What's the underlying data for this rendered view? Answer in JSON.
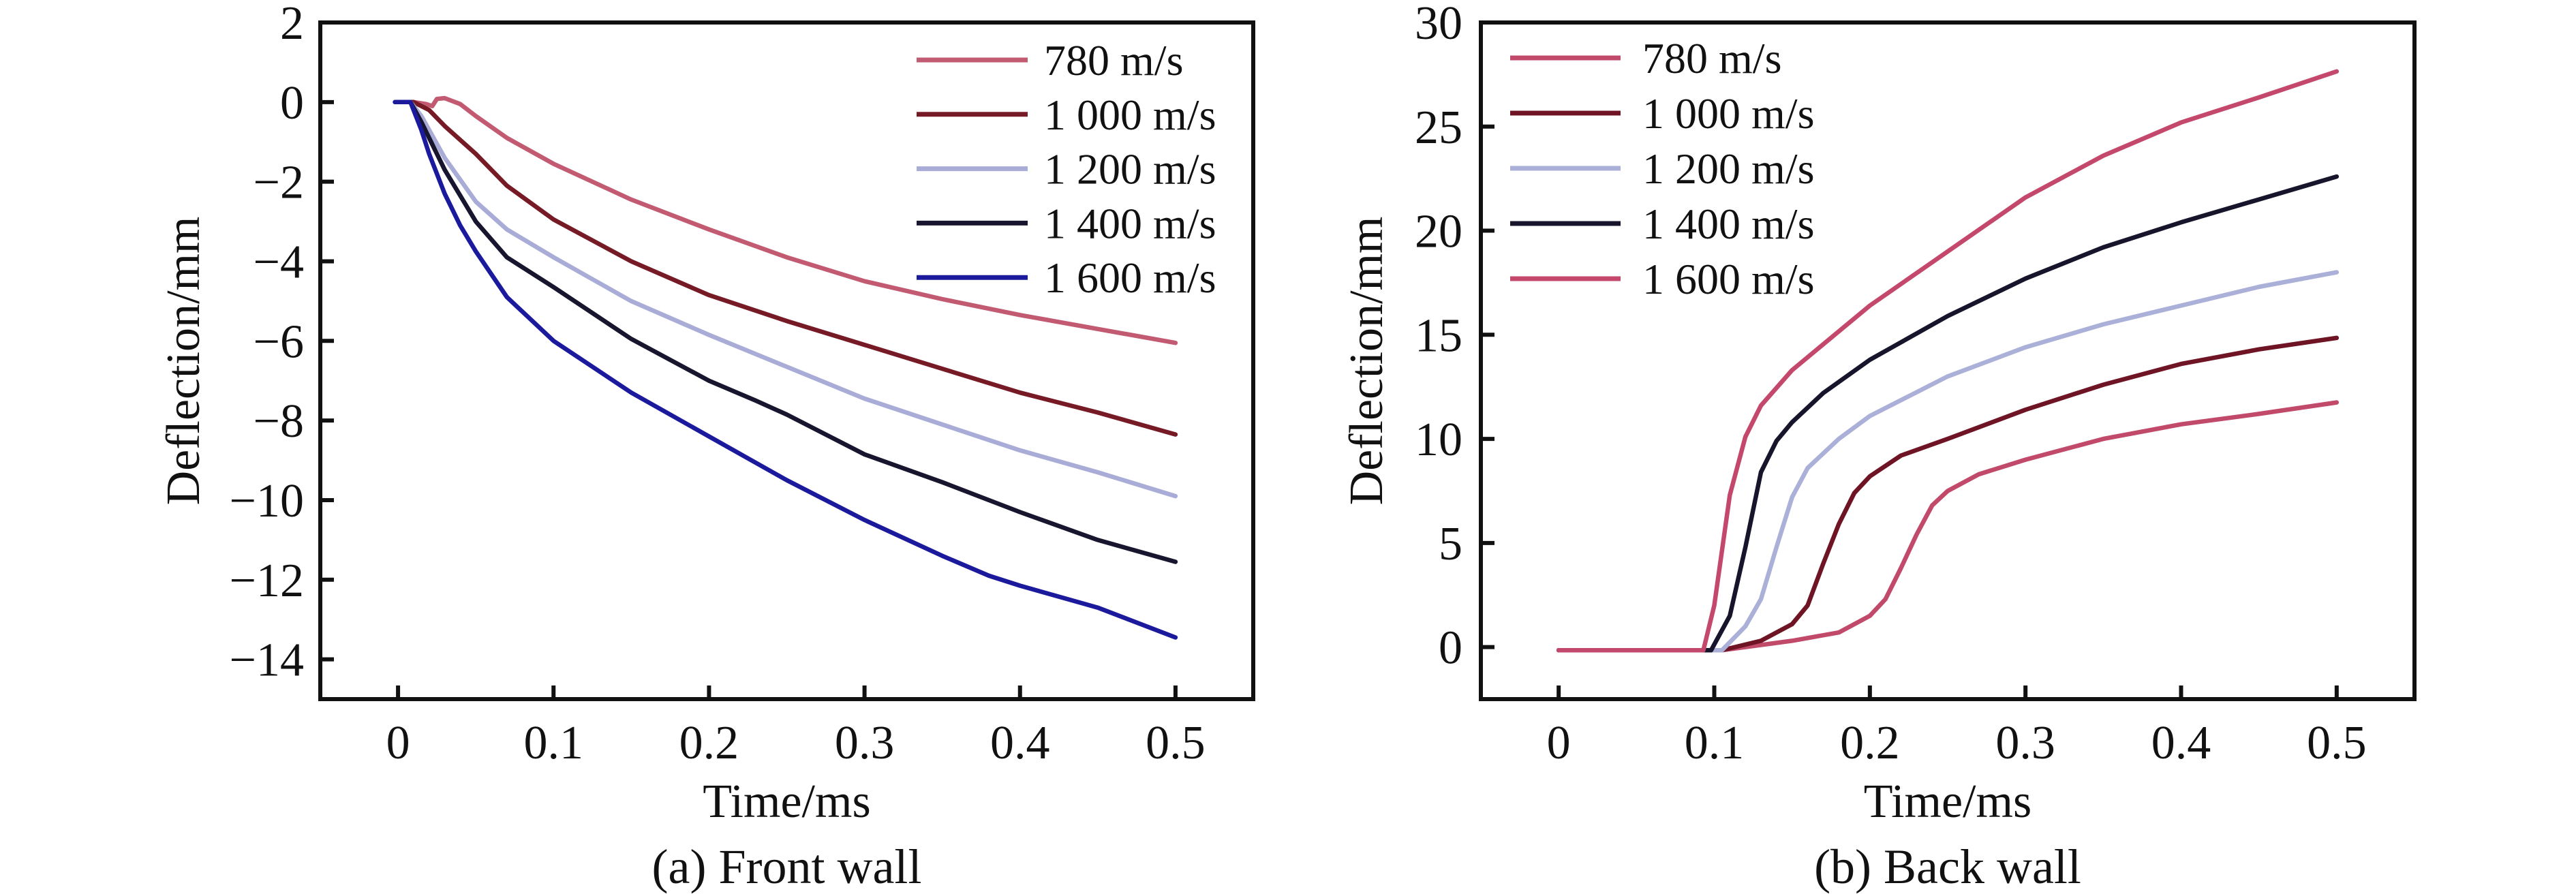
{
  "chart_data": [
    {
      "id": "front",
      "type": "line",
      "title": "",
      "caption": "(a) Front wall",
      "xlabel": "Time/ms",
      "ylabel": "Deflection/mm",
      "xlim": [
        -0.05,
        0.55
      ],
      "ylim": [
        -15,
        2
      ],
      "xticks": [
        0,
        0.1,
        0.2,
        0.3,
        0.4,
        0.5
      ],
      "xtick_labels": [
        "0",
        "0.1",
        "0.2",
        "0.3",
        "0.4",
        "0.5"
      ],
      "yticks": [
        2,
        0,
        -2,
        -4,
        -6,
        -8,
        -10,
        -12,
        -14
      ],
      "ytick_labels": [
        "2",
        "0",
        "−2",
        "−4",
        "−6",
        "−8",
        "−10",
        "−12",
        "−14"
      ],
      "grid": false,
      "legend_position": "top-right",
      "series": [
        {
          "name": "780 m/s",
          "color": "#c25a72",
          "x": [
            0.0,
            0.01,
            0.018,
            0.022,
            0.025,
            0.03,
            0.04,
            0.05,
            0.07,
            0.1,
            0.15,
            0.2,
            0.25,
            0.3,
            0.35,
            0.4,
            0.45,
            0.5
          ],
          "y": [
            0.0,
            0.0,
            -0.05,
            -0.1,
            0.08,
            0.1,
            -0.05,
            -0.35,
            -0.9,
            -1.55,
            -2.45,
            -3.2,
            -3.9,
            -4.5,
            -4.95,
            -5.35,
            -5.7,
            -6.05
          ]
        },
        {
          "name": "1 000 m/s",
          "color": "#761a26",
          "x": [
            0.0,
            0.01,
            0.02,
            0.03,
            0.05,
            0.07,
            0.1,
            0.15,
            0.2,
            0.25,
            0.3,
            0.35,
            0.4,
            0.45,
            0.5
          ],
          "y": [
            0.0,
            0.0,
            -0.2,
            -0.6,
            -1.3,
            -2.1,
            -2.95,
            -4.0,
            -4.85,
            -5.5,
            -6.1,
            -6.7,
            -7.3,
            -7.8,
            -8.35
          ]
        },
        {
          "name": "1 200 m/s",
          "color": "#a9acd6",
          "x": [
            0.0,
            0.008,
            0.015,
            0.02,
            0.03,
            0.05,
            0.07,
            0.1,
            0.15,
            0.2,
            0.25,
            0.3,
            0.35,
            0.4,
            0.45,
            0.5
          ],
          "y": [
            0.0,
            0.0,
            -0.35,
            -0.7,
            -1.4,
            -2.5,
            -3.2,
            -3.9,
            -5.0,
            -5.85,
            -6.65,
            -7.45,
            -8.1,
            -8.75,
            -9.3,
            -9.9
          ]
        },
        {
          "name": "1 400 m/s",
          "color": "#17162e",
          "x": [
            0.0,
            0.008,
            0.015,
            0.02,
            0.03,
            0.05,
            0.07,
            0.1,
            0.15,
            0.2,
            0.23,
            0.25,
            0.3,
            0.35,
            0.4,
            0.45,
            0.5
          ],
          "y": [
            0.0,
            0.0,
            -0.5,
            -0.9,
            -1.7,
            -3.0,
            -3.9,
            -4.65,
            -5.95,
            -7.0,
            -7.5,
            -7.85,
            -8.85,
            -9.55,
            -10.3,
            -11.0,
            -11.55
          ]
        },
        {
          "name": "1 600 m/s",
          "color": "#1c1a9c",
          "x": [
            -0.002,
            0.008,
            0.015,
            0.02,
            0.03,
            0.04,
            0.05,
            0.07,
            0.1,
            0.15,
            0.2,
            0.25,
            0.3,
            0.35,
            0.38,
            0.4,
            0.45,
            0.5
          ],
          "y": [
            0.0,
            0.0,
            -0.7,
            -1.3,
            -2.3,
            -3.1,
            -3.75,
            -4.9,
            -6.0,
            -7.3,
            -8.4,
            -9.5,
            -10.5,
            -11.4,
            -11.9,
            -12.15,
            -12.7,
            -13.45
          ]
        }
      ]
    },
    {
      "id": "back",
      "type": "line",
      "title": "",
      "caption": "(b) Back wall",
      "xlabel": "Time/ms",
      "ylabel": "Deflection/mm",
      "xlim": [
        -0.05,
        0.55
      ],
      "ylim": [
        -2.5,
        30
      ],
      "xticks": [
        0,
        0.1,
        0.2,
        0.3,
        0.4,
        0.5
      ],
      "xtick_labels": [
        "0",
        "0.1",
        "0.2",
        "0.3",
        "0.4",
        "0.5"
      ],
      "yticks": [
        0,
        5,
        10,
        15,
        20,
        25,
        30
      ],
      "ytick_labels": [
        "0",
        "5",
        "10",
        "15",
        "20",
        "25",
        "30"
      ],
      "grid": false,
      "legend_position": "top-left",
      "series": [
        {
          "name": "780 m/s",
          "color": "#c14a6a",
          "x": [
            0.0,
            0.105,
            0.15,
            0.18,
            0.2,
            0.21,
            0.22,
            0.23,
            0.24,
            0.25,
            0.27,
            0.3,
            0.35,
            0.4,
            0.45,
            0.5
          ],
          "y": [
            -0.15,
            -0.15,
            0.3,
            0.7,
            1.5,
            2.3,
            3.8,
            5.4,
            6.8,
            7.5,
            8.3,
            9.0,
            10.0,
            10.7,
            11.2,
            11.75
          ]
        },
        {
          "name": "1 000 m/s",
          "color": "#6e1424",
          "x": [
            0.0,
            0.105,
            0.13,
            0.15,
            0.16,
            0.17,
            0.18,
            0.19,
            0.2,
            0.22,
            0.25,
            0.3,
            0.35,
            0.4,
            0.45,
            0.5
          ],
          "y": [
            -0.15,
            -0.15,
            0.3,
            1.1,
            2.0,
            4.0,
            5.9,
            7.4,
            8.2,
            9.2,
            10.0,
            11.4,
            12.6,
            13.6,
            14.3,
            14.85
          ]
        },
        {
          "name": "1 200 m/s",
          "color": "#aab0d8",
          "x": [
            0.0,
            0.105,
            0.12,
            0.13,
            0.14,
            0.15,
            0.16,
            0.18,
            0.2,
            0.25,
            0.3,
            0.35,
            0.4,
            0.45,
            0.5
          ],
          "y": [
            -0.15,
            -0.15,
            1.0,
            2.3,
            4.8,
            7.2,
            8.6,
            10.0,
            11.1,
            13.0,
            14.4,
            15.5,
            16.4,
            17.3,
            18.0
          ]
        },
        {
          "name": "1 400 m/s",
          "color": "#16152c",
          "x": [
            0.0,
            0.098,
            0.11,
            0.12,
            0.13,
            0.14,
            0.15,
            0.17,
            0.2,
            0.25,
            0.3,
            0.35,
            0.4,
            0.45,
            0.5
          ],
          "y": [
            -0.15,
            -0.15,
            1.5,
            4.8,
            8.4,
            9.9,
            10.8,
            12.2,
            13.8,
            15.9,
            17.7,
            19.2,
            20.4,
            21.5,
            22.6
          ]
        },
        {
          "name": "1 600 m/s",
          "color": "#c4486c",
          "x": [
            0.0,
            0.093,
            0.1,
            0.11,
            0.12,
            0.13,
            0.15,
            0.2,
            0.25,
            0.3,
            0.35,
            0.4,
            0.45,
            0.5
          ],
          "y": [
            -0.15,
            -0.15,
            2.0,
            7.3,
            10.1,
            11.6,
            13.3,
            16.4,
            19.0,
            21.6,
            23.6,
            25.2,
            26.4,
            27.65
          ]
        }
      ]
    }
  ]
}
